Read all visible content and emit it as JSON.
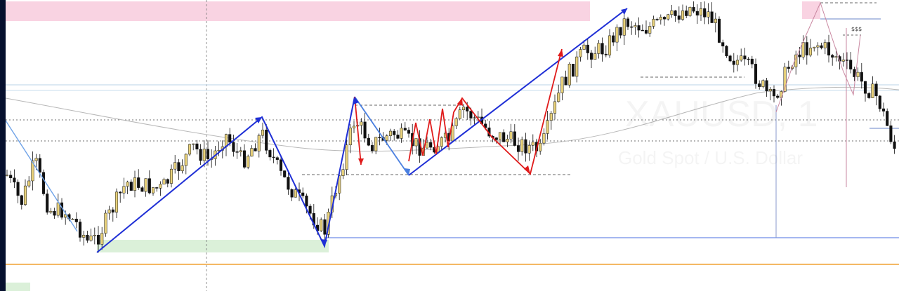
{
  "chart_data": {
    "type": "candlestick",
    "symbol": "XAUUSD, 1",
    "description": "Gold Spot / U.S. Dollar",
    "annotations": [
      {
        "label": "$$$"
      }
    ],
    "colors": {
      "bull_candle": "#e8d17a",
      "bear_candle": "#111111",
      "wick": "#111111",
      "zigzag_major": "#1f2fd6",
      "zigzag_minor": "#e01b1b",
      "zigzag_light": "#4a7fe0",
      "supply_zone": "#f9d3e2",
      "demand_zone": "#dbf0d9",
      "support_line": "#f0a030",
      "moving_average": "#b8b8b8",
      "level_line": "#c7dcec",
      "grid": "#555555",
      "dashed_level": "#333333",
      "fib_tool": "#c987a0"
    }
  }
}
